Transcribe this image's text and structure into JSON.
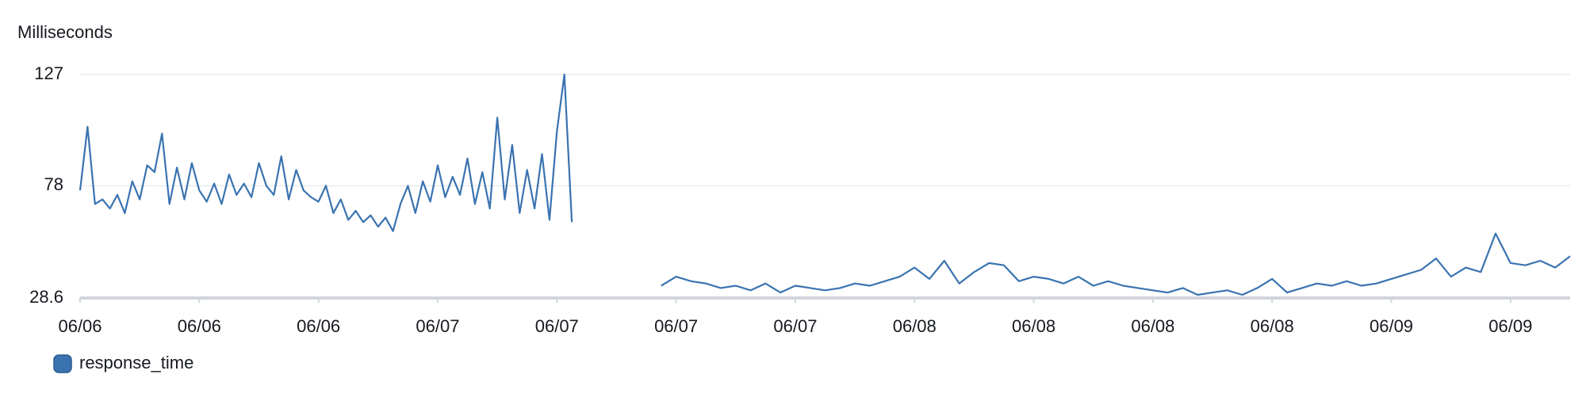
{
  "chart_data": {
    "type": "line",
    "y_label": "Milliseconds",
    "x": [
      0,
      0.5,
      1,
      1.5,
      2,
      2.5,
      3,
      3.5,
      4,
      4.5,
      5,
      5.5,
      6,
      6.5,
      7,
      7.5,
      8,
      8.5,
      9,
      9.5,
      10,
      10.5,
      11,
      11.5,
      12,
      12.5,
      13,
      13.5,
      14,
      14.5,
      15,
      15.5,
      16,
      16.5,
      17,
      17.5,
      18,
      18.5,
      19,
      19.5,
      20,
      20.5,
      21,
      21.5,
      22,
      22.5,
      23,
      23.5,
      24,
      24.5,
      25,
      25.5,
      26,
      26.5,
      27,
      27.5,
      28,
      28.5,
      29,
      29.5,
      30,
      30.5,
      31,
      31.5,
      32,
      32.5,
      33,
      36,
      39,
      40,
      41,
      42,
      43,
      44,
      45,
      46,
      47,
      48,
      49,
      50,
      51,
      52,
      53,
      54,
      55,
      56,
      57,
      58,
      59,
      60,
      61,
      62,
      63,
      64,
      65,
      66,
      67,
      68,
      69,
      70,
      71,
      72,
      73,
      74,
      75,
      76,
      77,
      78,
      79,
      80,
      81,
      82,
      83,
      84,
      85,
      86,
      87,
      88,
      89,
      90,
      91,
      92,
      93,
      94,
      95,
      96,
      97,
      98,
      99,
      100
    ],
    "series": [
      {
        "name": "response_time",
        "color": "#3a73b0",
        "values": [
          76,
          104,
          70,
          72,
          68,
          74,
          66,
          80,
          72,
          87,
          84,
          101,
          70,
          86,
          72,
          88,
          76,
          71,
          79,
          70,
          83,
          74,
          79,
          73,
          88,
          78,
          74,
          91,
          72,
          85,
          76,
          73,
          71,
          78,
          66,
          72,
          63,
          67,
          62,
          65,
          60,
          64,
          58,
          70,
          78,
          66,
          80,
          71,
          87,
          73,
          82,
          74,
          90,
          70,
          84,
          68,
          108,
          72,
          96,
          66,
          85,
          68,
          92,
          63,
          102,
          127,
          62,
          null,
          34,
          38,
          36,
          35,
          33,
          34,
          32,
          35,
          31,
          34,
          33,
          32,
          33,
          35,
          34,
          36,
          38,
          42,
          37,
          45,
          35,
          40,
          44,
          43,
          36,
          38,
          37,
          35,
          38,
          34,
          36,
          34,
          33,
          32,
          31,
          33,
          30,
          31,
          32,
          30,
          33,
          37,
          31,
          33,
          35,
          34,
          36,
          34,
          35,
          37,
          39,
          41,
          46,
          38,
          42,
          40,
          57,
          44,
          43,
          45,
          42,
          47
        ]
      }
    ],
    "xlim": [
      0,
      100
    ],
    "xticks": [
      {
        "value": 0,
        "label": "06/06"
      },
      {
        "value": 8,
        "label": "06/06"
      },
      {
        "value": 16,
        "label": "06/06"
      },
      {
        "value": 24,
        "label": "06/07"
      },
      {
        "value": 32,
        "label": "06/07"
      },
      {
        "value": 40,
        "label": "06/07"
      },
      {
        "value": 48,
        "label": "06/07"
      },
      {
        "value": 56,
        "label": "06/08"
      },
      {
        "value": 64,
        "label": "06/08"
      },
      {
        "value": 72,
        "label": "06/08"
      },
      {
        "value": 80,
        "label": "06/08"
      },
      {
        "value": 88,
        "label": "06/09"
      },
      {
        "value": 96,
        "label": "06/09"
      }
    ],
    "ylim": [
      28.6,
      127
    ],
    "yticks": [
      28.6,
      78,
      127
    ],
    "grid": true
  }
}
